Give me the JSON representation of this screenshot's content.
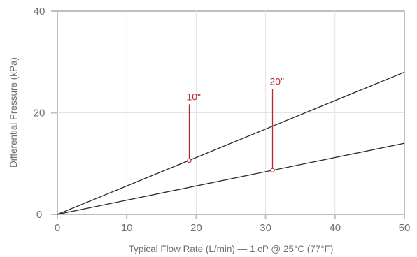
{
  "chart_data": {
    "type": "line",
    "title": "",
    "xlabel": "Typical Flow Rate (L/min) — 1 cP @ 25°C (77°F)",
    "ylabel": "Differential Pressure (kPa)",
    "xlim": [
      0,
      50
    ],
    "ylim": [
      0,
      40
    ],
    "xticks": [
      0,
      10,
      20,
      30,
      40,
      50
    ],
    "yticks": [
      0,
      20,
      40
    ],
    "grid": true,
    "legend": "none",
    "series": [
      {
        "x": [
          0,
          50
        ],
        "y": [
          0,
          28
        ],
        "color": "#2b2b2b"
      },
      {
        "x": [
          0,
          50
        ],
        "y": [
          0,
          14
        ],
        "color": "#2b2b2b"
      }
    ],
    "annotations": [
      {
        "label": "10\"",
        "x": 19,
        "y": 10.6,
        "label_y": 22.5,
        "color": "#b5292f"
      },
      {
        "label": "20\"",
        "x": 31,
        "y": 8.7,
        "label_y": 25.5,
        "color": "#b5292f"
      }
    ],
    "colors": {
      "axis": "#c9bcb3",
      "grid": "#e4e4e4",
      "text": "#6f6f6f",
      "accent": "#b5292f"
    }
  }
}
